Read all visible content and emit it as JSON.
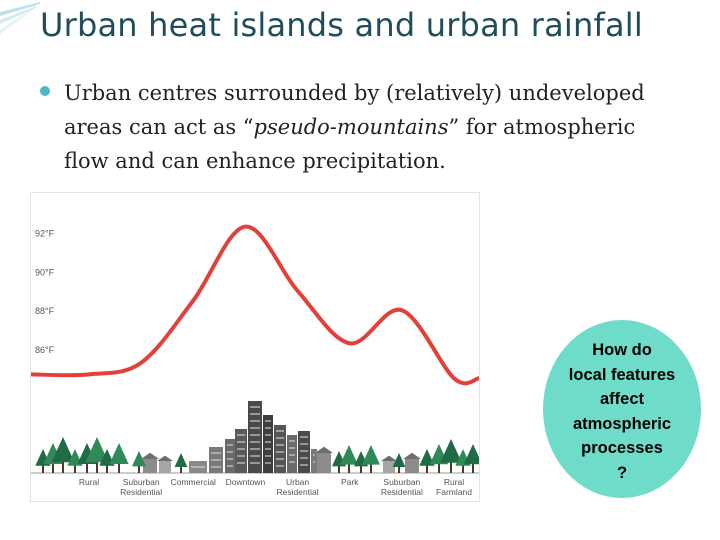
{
  "slide": {
    "title": "Urban heat islands and urban rainfall",
    "bullet_before": "Urban centres surrounded by (relatively) undeveloped areas can act as “",
    "bullet_emphasis": "pseudo-mountains",
    "bullet_after": "” for atmospheric flow and can enhance precipitation."
  },
  "callout": {
    "lines": [
      "How do",
      "local features",
      "affect",
      "atmospheric",
      "processes",
      "?"
    ]
  },
  "colors": {
    "title": "#1f4d5c",
    "accent_bullet": "#4cb7c9",
    "curve": "#e2403b",
    "callout_fill": "#6edcc8"
  },
  "chart_data": {
    "type": "line",
    "title": "",
    "xlabel": "",
    "ylabel": "",
    "ylim": [
      84,
      93
    ],
    "yticks": [
      86,
      88,
      90,
      92
    ],
    "ytick_labels": [
      "86°F",
      "88°F",
      "90°F",
      "92°F"
    ],
    "grid": false,
    "legend": "none",
    "categories": [
      "Rural",
      "Suburban Residential",
      "Commercial",
      "Downtown",
      "Urban Residential",
      "Park",
      "Suburban Residential",
      "Rural Farmland"
    ],
    "category_labels": [
      [
        "Rural"
      ],
      [
        "Suburban",
        "Residential"
      ],
      [
        "Commercial"
      ],
      [
        "Downtown"
      ],
      [
        "Urban",
        "Residential"
      ],
      [
        "Park"
      ],
      [
        "Suburban",
        "Residential"
      ],
      [
        "Rural",
        "Farmland"
      ]
    ],
    "series": [
      {
        "values": [
          84.7,
          85.3,
          88.5,
          92.3,
          89.0,
          86.3,
          88.0,
          84.5
        ]
      }
    ]
  }
}
